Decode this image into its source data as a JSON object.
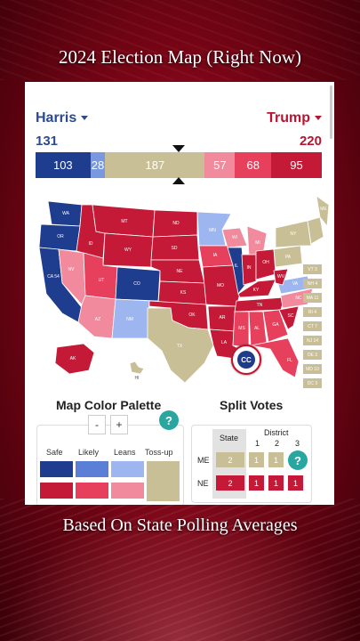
{
  "overlay": {
    "title": "2024 Election Map (Right Now)",
    "caption": "Based On State Polling Averages"
  },
  "header": {
    "harris_label": "Harris",
    "trump_label": "Trump",
    "harris_total": "131",
    "trump_total": "220"
  },
  "tally_bar": {
    "segments": [
      {
        "label": "103",
        "value": 103,
        "color": "#1f3d8f",
        "category": "safe-d"
      },
      {
        "label": "28",
        "value": 28,
        "color": "#7a98e0",
        "category": "likely-d"
      },
      {
        "label": "187",
        "value": 187,
        "color": "#c9bf96",
        "category": "toss-up"
      },
      {
        "label": "57",
        "value": 57,
        "color": "#f08a9c",
        "category": "leans-r"
      },
      {
        "label": "68",
        "value": 68,
        "color": "#e6405c",
        "category": "likely-r"
      },
      {
        "label": "95",
        "value": 95,
        "color": "#c51a37",
        "category": "safe-r"
      }
    ]
  },
  "map": {
    "state_labels": {
      "wa": "WA",
      "or": "OR",
      "ca": "CA 54",
      "nv": "NV",
      "id": "ID",
      "mt": "MT",
      "wy": "WY",
      "ut": "UT",
      "co": "CO",
      "az": "AZ",
      "nm": "NM",
      "nd": "ND",
      "sd": "SD",
      "ne": "NE",
      "ks": "KS",
      "ok": "OK",
      "tx": "TX",
      "mn": "MN",
      "ia": "IA",
      "mo": "MO",
      "ar": "AR",
      "la": "LA",
      "wi": "WI",
      "il": "IL",
      "mi": "MI",
      "in": "IN",
      "oh": "OH",
      "ky": "KY",
      "tn": "TN",
      "ms": "MS",
      "al": "AL",
      "ga": "GA",
      "fl": "FL",
      "sc": "SC",
      "nc": "NC",
      "va": "VA",
      "wv": "WV",
      "pa": "PA",
      "ny": "NY",
      "me": "ME",
      "ak": "AK",
      "hi": "HI"
    },
    "small_states": [
      {
        "label": "VT 3"
      },
      {
        "label": "NH 4"
      },
      {
        "label": "MA 11"
      },
      {
        "label": "RI 4"
      },
      {
        "label": "CT 7"
      },
      {
        "label": "NJ 14"
      },
      {
        "label": "DE 3"
      },
      {
        "label": "MD 10"
      },
      {
        "label": "DC 3"
      }
    ],
    "logo_text": "CC"
  },
  "palette": {
    "title": "Map Color Palette",
    "minus": "-",
    "plus": "+",
    "help": "?",
    "columns": [
      "Safe",
      "Likely",
      "Leans",
      "Toss-up"
    ],
    "blue_colors": [
      "#1f3d8f",
      "#5b7fd6",
      "#9db6f0"
    ],
    "red_colors": [
      "#c51a37",
      "#e6405c",
      "#f08a9c"
    ],
    "tossup_color": "#c9bf96"
  },
  "split_votes": {
    "title": "Split Votes",
    "state_header": "State",
    "district_header": "District",
    "district_numbers": [
      "1",
      "2",
      "3"
    ],
    "help": "?",
    "rows": [
      {
        "state": "ME",
        "state_value": "2",
        "districts": [
          "1",
          "1"
        ]
      },
      {
        "state": "NE",
        "state_value": "2",
        "districts": [
          "1",
          "1",
          "1"
        ]
      }
    ]
  }
}
